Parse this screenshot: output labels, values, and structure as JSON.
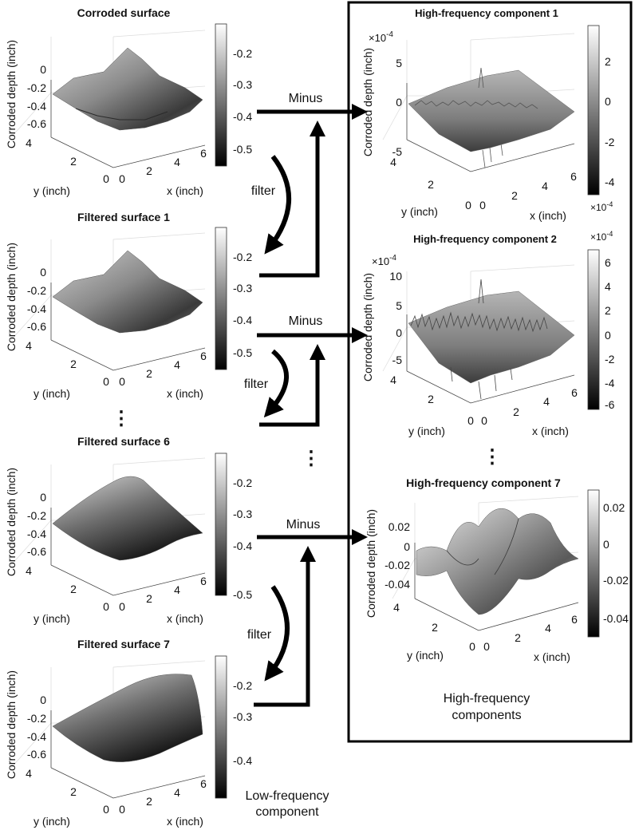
{
  "panels": {
    "corroded": {
      "title": "Corroded surface",
      "zticks": [
        "0",
        "-0.2",
        "-0.4",
        "-0.6"
      ],
      "cbticks": [
        "-0.2",
        "-0.3",
        "-0.4",
        "-0.5"
      ],
      "yticks": [
        "4",
        "2",
        "0"
      ],
      "xticks": [
        "0",
        "2",
        "4",
        "6"
      ],
      "zlabel": "Corroded depth (inch)",
      "ylabel": "y (inch)",
      "xlabel": "x (inch)"
    },
    "filtered1": {
      "title": "Filtered surface 1",
      "zticks": [
        "0",
        "-0.2",
        "-0.4",
        "-0.6"
      ],
      "cbticks": [
        "-0.2",
        "-0.3",
        "-0.4",
        "-0.5"
      ],
      "yticks": [
        "4",
        "2",
        "0"
      ],
      "xticks": [
        "0",
        "2",
        "4",
        "6"
      ],
      "zlabel": "Corroded depth (inch)",
      "ylabel": "y (inch)",
      "xlabel": "x (inch)"
    },
    "filtered6": {
      "title": "Filtered surface 6",
      "zticks": [
        "0",
        "-0.2",
        "-0.4",
        "-0.6"
      ],
      "cbticks": [
        "-0.2",
        "-0.3",
        "-0.4",
        "-0.5"
      ],
      "yticks": [
        "4",
        "2",
        "0"
      ],
      "xticks": [
        "0",
        "2",
        "4",
        "6"
      ],
      "zlabel": "Corroded depth (inch)",
      "ylabel": "y (inch)",
      "xlabel": "x (inch)"
    },
    "filtered7": {
      "title": "Filtered surface 7",
      "zticks": [
        "0",
        "-0.2",
        "-0.4",
        "-0.6"
      ],
      "cbticks": [
        "-0.2",
        "-0.3",
        "-0.4"
      ],
      "yticks": [
        "4",
        "2",
        "0"
      ],
      "xticks": [
        "0",
        "2",
        "4",
        "6"
      ],
      "zlabel": "Corroded depth (inch)",
      "ylabel": "y (inch)",
      "xlabel": "x (inch)"
    },
    "hf1": {
      "title": "High-frequency component 1",
      "exponent": "×10",
      "exp": "-4",
      "cb_exponent": "×10",
      "cb_exp": "-4",
      "zticks": [
        "5",
        "0",
        "-5"
      ],
      "cbticks": [
        "2",
        "0",
        "-2",
        "-4"
      ],
      "yticks": [
        "4",
        "2",
        "0"
      ],
      "xticks": [
        "0",
        "2",
        "4",
        "6"
      ],
      "zlabel": "Corroded depth (inch)",
      "ylabel": "y (inch)",
      "xlabel": "x (inch)"
    },
    "hf2": {
      "title": "High-frequency component 2",
      "exponent": "×10",
      "exp": "-4",
      "cb_exponent": "×10",
      "cb_exp": "-4",
      "zticks": [
        "10",
        "5",
        "0",
        "-5"
      ],
      "cbticks": [
        "6",
        "4",
        "2",
        "0",
        "-2",
        "-4",
        "-6"
      ],
      "yticks": [
        "4",
        "2",
        "0"
      ],
      "xticks": [
        "0",
        "2",
        "4",
        "6"
      ],
      "zlabel": "Corroded depth (inch)",
      "ylabel": "y (inch)",
      "xlabel": "x (inch)"
    },
    "hf7": {
      "title": "High-frequency component 7",
      "zticks": [
        "0.02",
        "0",
        "-0.02",
        "-0.04"
      ],
      "cbticks": [
        "0.02",
        "0",
        "-0.02",
        "-0.04"
      ],
      "yticks": [
        "4",
        "2",
        "0"
      ],
      "xticks": [
        "0",
        "2",
        "4",
        "6"
      ],
      "zlabel": "Corroded depth (inch)",
      "ylabel": "y (inch)",
      "xlabel": "x (inch)"
    }
  },
  "flow": {
    "minus": "Minus",
    "filter": "filter",
    "ellipsis": "⋮",
    "low_frequency_line1": "Low-frequency",
    "low_frequency_line2": "component",
    "high_frequency_line1": "High-frequency",
    "high_frequency_line2": "components"
  },
  "colors": {
    "arrow": "#000000",
    "frame": "#000000"
  }
}
